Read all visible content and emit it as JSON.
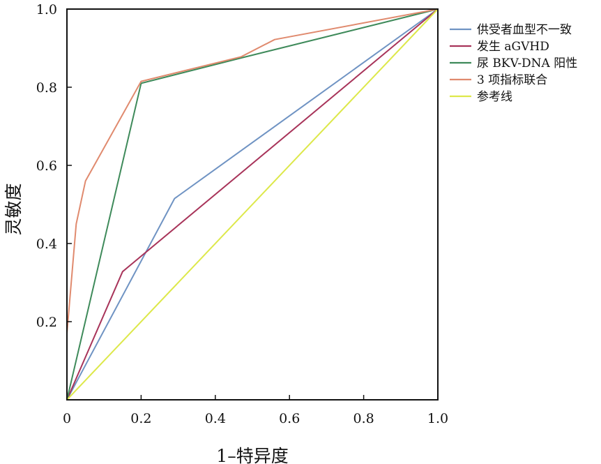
{
  "chart_data": {
    "type": "line",
    "xlabel": "1–特异度",
    "ylabel": "灵敏度",
    "xlim": [
      0,
      1
    ],
    "ylim": [
      0,
      1
    ],
    "x_ticks": [
      0,
      0.2,
      0.4,
      0.6,
      0.8,
      1.0
    ],
    "x_tick_labels": [
      "0",
      "0.2",
      "0.4",
      "0.6",
      "0.8",
      "1.0"
    ],
    "y_ticks": [
      0.2,
      0.4,
      0.6,
      0.8,
      1.0
    ],
    "y_tick_labels": [
      "0.2",
      "0.4",
      "0.6",
      "0.8",
      "1.0"
    ],
    "grid": false,
    "legend_position": "right",
    "series": [
      {
        "name": "供受者血型不一致",
        "color": "#6f93c3",
        "points": [
          [
            0,
            0
          ],
          [
            0.29,
            0.515
          ],
          [
            1,
            1
          ]
        ]
      },
      {
        "name": "发生 aGVHD",
        "color": "#a8345a",
        "points": [
          [
            0,
            0
          ],
          [
            0.15,
            0.328
          ],
          [
            1,
            1
          ]
        ]
      },
      {
        "name": "尿 BKV-DNA 阳性",
        "color": "#3e8a5a",
        "points": [
          [
            0,
            0
          ],
          [
            0.2,
            0.81
          ],
          [
            0.47,
            0.875
          ],
          [
            1,
            1
          ]
        ]
      },
      {
        "name": "3 项指标联合",
        "color": "#e08a6e",
        "points": [
          [
            0,
            0
          ],
          [
            0.0,
            0.17
          ],
          [
            0.025,
            0.45
          ],
          [
            0.05,
            0.56
          ],
          [
            0.2,
            0.815
          ],
          [
            0.47,
            0.878
          ],
          [
            0.56,
            0.922
          ],
          [
            1,
            1
          ]
        ]
      },
      {
        "name": "参考线",
        "color": "#dde84a",
        "points": [
          [
            0,
            0
          ],
          [
            1,
            1
          ]
        ]
      }
    ]
  }
}
